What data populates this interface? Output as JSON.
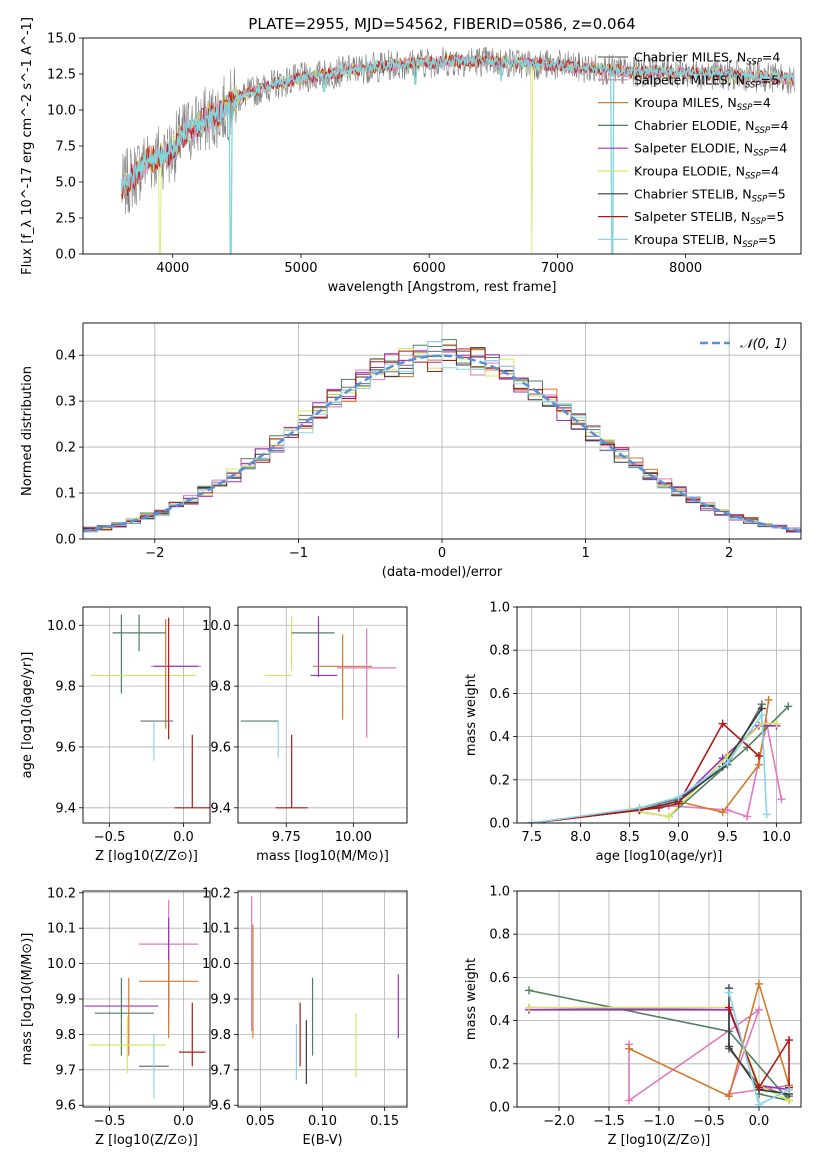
{
  "figure_title": "PLATE=2955, MJD=54562, FIBERID=0586, z=0.064",
  "legend_entries": [
    {
      "label": "Chabrier MILES, N",
      "sub": "SSP",
      "tail": "=4",
      "color": "#6e6e6e"
    },
    {
      "label": "Salpeter MILES, N",
      "sub": "SSP",
      "tail": "=5",
      "color": "#e377c2"
    },
    {
      "label": "Kroupa MILES, N",
      "sub": "SSP",
      "tail": "=4",
      "color": "#d2792a"
    },
    {
      "label": "Chabrier ELODIE, N",
      "sub": "SSP",
      "tail": "=4",
      "color": "#4f8060"
    },
    {
      "label": "Salpeter ELODIE, N",
      "sub": "SSP",
      "tail": "=4",
      "color": "#9b30c4"
    },
    {
      "label": "Kroupa ELODIE, N",
      "sub": "SSP",
      "tail": "=4",
      "color": "#d8e560"
    },
    {
      "label": "Chabrier STELIB, N",
      "sub": "SSP",
      "tail": "=5",
      "color": "#3a3a3a"
    },
    {
      "label": "Salpeter STELIB, N",
      "sub": "SSP",
      "tail": "=5",
      "color": "#b01818"
    },
    {
      "label": "Kroupa STELIB, N",
      "sub": "SSP",
      "tail": "=5",
      "color": "#8ad4e8"
    }
  ],
  "normal_legend": "𝒩(0, 1)",
  "chart_data": [
    {
      "id": "spectrum",
      "type": "line",
      "xlabel": "wavelength [Angstrom, rest frame]",
      "ylabel": "Flux [f_λ 10^-17 erg cm^-2 s^-1 A^-1]",
      "xlim": [
        3300,
        8900
      ],
      "ylim": [
        0,
        15
      ],
      "xticks": [
        4000,
        5000,
        6000,
        7000,
        8000
      ],
      "yticks": [
        0.0,
        2.5,
        5.0,
        7.5,
        10.0,
        12.5,
        15.0
      ],
      "continuum": {
        "x": [
          3600,
          3700,
          3800,
          3900,
          4000,
          4100,
          4200,
          4300,
          4400,
          4500,
          4600,
          4700,
          4800,
          4900,
          5000,
          5200,
          5400,
          5600,
          5800,
          6000,
          6200,
          6400,
          6600,
          6800,
          7000,
          7200,
          7400,
          7600,
          7800,
          8000,
          8200,
          8400,
          8600,
          8800
        ],
        "y": [
          4.5,
          5.5,
          6.5,
          6.8,
          7.2,
          8.5,
          9.0,
          9.5,
          10.0,
          10.8,
          11.2,
          11.5,
          11.8,
          12.0,
          12.2,
          12.5,
          12.8,
          13.0,
          13.2,
          13.3,
          13.4,
          13.4,
          13.3,
          13.2,
          13.1,
          12.9,
          12.8,
          12.6,
          12.7,
          12.6,
          12.5,
          12.4,
          12.3,
          12.2
        ]
      },
      "absorption_dips": [
        {
          "x": 4450,
          "y": 0
        },
        {
          "x": 5180,
          "y": 11.3
        },
        {
          "x": 5890,
          "y": 11.8
        },
        {
          "x": 6560,
          "y": 12.0
        },
        {
          "x": 7430,
          "y": 0
        }
      ],
      "grid": false
    },
    {
      "id": "residual_hist",
      "type": "histogram",
      "xlabel": "(data-model)/error",
      "ylabel": "Normed distribution",
      "xlim": [
        -2.5,
        2.5
      ],
      "ylim": [
        0,
        0.47
      ],
      "xticks": [
        -2,
        -1,
        0,
        1,
        2
      ],
      "yticks": [
        0.0,
        0.1,
        0.2,
        0.3,
        0.4
      ],
      "bin_width": 0.1,
      "grid": true,
      "legend": "top-right",
      "reference": "normal(0,1)"
    },
    {
      "id": "age_vs_Z",
      "type": "scatter",
      "xlabel": "Z [log10(Z/Z⊙)]",
      "ylabel": "age  [log10(age/yr)]",
      "xlim": [
        -0.68,
        0.18
      ],
      "ylim": [
        9.35,
        10.06
      ],
      "xticks": [
        -0.5,
        0.0
      ],
      "yticks": [
        9.4,
        9.6,
        9.8,
        10.0
      ],
      "grid": true,
      "points": [
        {
          "x": -0.3,
          "y": 9.975,
          "xerr": 0.18,
          "yerr": 0.06,
          "c": 3
        },
        {
          "x": -0.42,
          "y": 9.905,
          "xerr": 0.0,
          "yerr": 0.13,
          "c": 3
        },
        {
          "x": -0.27,
          "y": 9.835,
          "xerr": 0.36,
          "yerr": 0.0,
          "c": 5
        },
        {
          "x": -0.05,
          "y": 9.865,
          "xerr": 0.17,
          "yerr": 0.0,
          "c": 1
        },
        {
          "x": -0.05,
          "y": 9.865,
          "xerr": 0.15,
          "yerr": 0.0,
          "c": 4
        },
        {
          "x": -0.1,
          "y": 9.825,
          "xerr": 0.0,
          "yerr": 0.2,
          "c": 7
        },
        {
          "x": -0.12,
          "y": 9.84,
          "xerr": 0.0,
          "yerr": 0.18,
          "c": 2
        },
        {
          "x": -0.18,
          "y": 9.685,
          "xerr": 0.11,
          "yerr": 0.0,
          "c": 0
        },
        {
          "x": -0.2,
          "y": 9.62,
          "xerr": 0.0,
          "yerr": 0.065,
          "c": 8
        },
        {
          "x": 0.06,
          "y": 9.4,
          "xerr": 0.12,
          "yerr": 0.0,
          "c": 7
        },
        {
          "x": 0.06,
          "y": 9.52,
          "xerr": 0.0,
          "yerr": 0.12,
          "c": 7
        }
      ]
    },
    {
      "id": "age_vs_mass",
      "type": "scatter",
      "xlabel": "mass [log10(M/M⊙)]",
      "ylabel": "",
      "xlim": [
        9.57,
        10.2
      ],
      "ylim": [
        9.35,
        10.06
      ],
      "xticks": [
        9.75,
        10.0
      ],
      "yticks": [
        9.4,
        9.6,
        9.8,
        10.0
      ],
      "grid": true,
      "points": [
        {
          "x": 9.65,
          "y": 9.685,
          "xerr": 0.07,
          "yerr": 0.0,
          "c": 3
        },
        {
          "x": 9.72,
          "y": 9.625,
          "xerr": 0.0,
          "yerr": 0.06,
          "c": 8
        },
        {
          "x": 9.77,
          "y": 9.94,
          "xerr": 0.0,
          "yerr": 0.09,
          "c": 5
        },
        {
          "x": 9.72,
          "y": 9.835,
          "xerr": 0.05,
          "yerr": 0.0,
          "c": 5
        },
        {
          "x": 9.85,
          "y": 9.975,
          "xerr": 0.08,
          "yerr": 0.0,
          "c": 3
        },
        {
          "x": 9.87,
          "y": 9.93,
          "xerr": 0.0,
          "yerr": 0.1,
          "c": 4
        },
        {
          "x": 9.89,
          "y": 9.835,
          "xerr": 0.05,
          "yerr": 0.0,
          "c": 4
        },
        {
          "x": 9.96,
          "y": 9.865,
          "xerr": 0.11,
          "yerr": 0.0,
          "c": 2
        },
        {
          "x": 9.96,
          "y": 9.83,
          "xerr": 0.0,
          "yerr": 0.14,
          "c": 2
        },
        {
          "x": 10.05,
          "y": 9.86,
          "xerr": 0.11,
          "yerr": 0.0,
          "c": 1
        },
        {
          "x": 10.05,
          "y": 9.81,
          "xerr": 0.0,
          "yerr": 0.18,
          "c": 1
        },
        {
          "x": 9.77,
          "y": 9.52,
          "xerr": 0.0,
          "yerr": 0.12,
          "c": 7
        },
        {
          "x": 9.77,
          "y": 9.4,
          "xerr": 0.06,
          "yerr": 0.0,
          "c": 7
        }
      ]
    },
    {
      "id": "massweight_vs_age",
      "type": "line",
      "xlabel": "age  [log10(age/yr)]",
      "ylabel": "mass weight",
      "xlim": [
        7.35,
        10.25
      ],
      "ylim": [
        0,
        1.0
      ],
      "xticks": [
        7.5,
        8.0,
        8.5,
        9.0,
        9.5,
        10.0
      ],
      "yticks": [
        0.0,
        0.2,
        0.4,
        0.6,
        0.8,
        1.0
      ],
      "grid": true,
      "series": [
        {
          "c": 0,
          "x": [
            7.5,
            8.5,
            9.0,
            9.5,
            9.85
          ],
          "y": [
            0.0,
            0.06,
            0.11,
            0.27,
            0.55
          ]
        },
        {
          "c": 1,
          "x": [
            7.5,
            8.6,
            8.9,
            9.5,
            9.7,
            9.9,
            10.05
          ],
          "y": [
            0.0,
            0.06,
            0.08,
            0.06,
            0.03,
            0.46,
            0.11
          ]
        },
        {
          "c": 2,
          "x": [
            7.5,
            8.6,
            9.0,
            9.45,
            9.82,
            9.92
          ],
          "y": [
            0.0,
            0.06,
            0.1,
            0.05,
            0.27,
            0.57
          ]
        },
        {
          "c": 3,
          "x": [
            7.5,
            8.5,
            8.9,
            9.7,
            10.12
          ],
          "y": [
            0.0,
            0.06,
            0.03,
            0.35,
            0.54
          ]
        },
        {
          "c": 4,
          "x": [
            7.5,
            8.6,
            9.0,
            9.45,
            9.82,
            10.0
          ],
          "y": [
            0.0,
            0.06,
            0.1,
            0.3,
            0.45,
            0.45
          ]
        },
        {
          "c": 5,
          "x": [
            7.5,
            8.5,
            8.9,
            9.5,
            9.85,
            10.0
          ],
          "y": [
            0.0,
            0.06,
            0.03,
            0.31,
            0.46,
            0.46
          ]
        },
        {
          "c": 6,
          "x": [
            7.5,
            8.6,
            9.0,
            9.45,
            9.85
          ],
          "y": [
            0.0,
            0.06,
            0.1,
            0.26,
            0.53
          ]
        },
        {
          "c": 7,
          "x": [
            7.5,
            8.6,
            8.8,
            9.0,
            9.45,
            9.82
          ],
          "y": [
            0.0,
            0.06,
            0.07,
            0.09,
            0.46,
            0.31
          ]
        },
        {
          "c": 8,
          "x": [
            7.5,
            8.6,
            9.0,
            9.5,
            9.85,
            9.9
          ],
          "y": [
            0.0,
            0.07,
            0.12,
            0.28,
            0.5,
            0.04
          ]
        }
      ]
    },
    {
      "id": "mass_vs_Z",
      "type": "scatter",
      "xlabel": "Z [log10(Z/Z⊙)]",
      "ylabel": "mass [log10(M/M⊙)]",
      "xlim": [
        -0.68,
        0.18
      ],
      "ylim": [
        9.595,
        10.205
      ],
      "xticks": [
        -0.5,
        0.0
      ],
      "yticks": [
        9.6,
        9.7,
        9.8,
        9.9,
        10.0,
        10.1,
        10.2
      ],
      "grid": true,
      "points": [
        {
          "x": -0.1,
          "y": 10.055,
          "xerr": 0.2,
          "yerr": 0.0,
          "c": 1
        },
        {
          "x": -0.1,
          "y": 10.0,
          "xerr": 0.0,
          "yerr": 0.18,
          "c": 1
        },
        {
          "x": -0.1,
          "y": 10.0,
          "xerr": 0.0,
          "yerr": 0.13,
          "c": 4
        },
        {
          "x": -0.1,
          "y": 9.95,
          "xerr": 0.2,
          "yerr": 0.0,
          "c": 2
        },
        {
          "x": -0.1,
          "y": 9.9,
          "xerr": 0.0,
          "yerr": 0.11,
          "c": 2
        },
        {
          "x": -0.42,
          "y": 9.88,
          "xerr": 0.25,
          "yerr": 0.0,
          "c": 4
        },
        {
          "x": -0.42,
          "y": 9.85,
          "xerr": 0.0,
          "yerr": 0.11,
          "c": 3
        },
        {
          "x": -0.4,
          "y": 9.86,
          "xerr": 0.2,
          "yerr": 0.0,
          "c": 3
        },
        {
          "x": -0.37,
          "y": 9.85,
          "xerr": 0.0,
          "yerr": 0.11,
          "c": 2
        },
        {
          "x": -0.38,
          "y": 9.77,
          "xerr": 0.26,
          "yerr": 0.0,
          "c": 5
        },
        {
          "x": -0.38,
          "y": 9.77,
          "xerr": 0.0,
          "yerr": 0.08,
          "c": 5
        },
        {
          "x": -0.2,
          "y": 9.71,
          "xerr": 0.1,
          "yerr": 0.0,
          "c": 0
        },
        {
          "x": -0.2,
          "y": 9.71,
          "xerr": 0.0,
          "yerr": 0.09,
          "c": 8
        },
        {
          "x": 0.06,
          "y": 9.75,
          "xerr": 0.09,
          "yerr": 0.0,
          "c": 7
        },
        {
          "x": 0.06,
          "y": 9.8,
          "xerr": 0.0,
          "yerr": 0.09,
          "c": 7
        }
      ]
    },
    {
      "id": "mass_vs_ebv",
      "type": "scatter",
      "xlabel": "E(B-V)",
      "ylabel": "",
      "xlim": [
        0.032,
        0.168
      ],
      "ylim": [
        9.595,
        10.205
      ],
      "xticks": [
        0.05,
        0.1,
        0.15
      ],
      "yticks": [
        9.6,
        9.7,
        9.8,
        9.9,
        10.0,
        10.1,
        10.2
      ],
      "grid": true,
      "points": [
        {
          "x": 0.043,
          "y": 10.0,
          "xerr": 0.0,
          "yerr": 0.19,
          "c": 1
        },
        {
          "x": 0.044,
          "y": 9.95,
          "xerr": 0.0,
          "yerr": 0.16,
          "c": 2
        },
        {
          "x": 0.079,
          "y": 9.75,
          "xerr": 0.0,
          "yerr": 0.08,
          "c": 8
        },
        {
          "x": 0.082,
          "y": 9.8,
          "xerr": 0.0,
          "yerr": 0.09,
          "c": 7
        },
        {
          "x": 0.087,
          "y": 9.75,
          "xerr": 0.0,
          "yerr": 0.09,
          "c": 6
        },
        {
          "x": 0.092,
          "y": 9.85,
          "xerr": 0.0,
          "yerr": 0.11,
          "c": 3
        },
        {
          "x": 0.127,
          "y": 9.77,
          "xerr": 0.0,
          "yerr": 0.09,
          "c": 5
        },
        {
          "x": 0.161,
          "y": 9.88,
          "xerr": 0.0,
          "yerr": 0.09,
          "c": 4
        }
      ]
    },
    {
      "id": "massweight_vs_Z",
      "type": "line",
      "xlabel": "Z [log10(Z/Z⊙)]",
      "ylabel": "mass weight",
      "xlim": [
        -2.42,
        0.42
      ],
      "ylim": [
        0,
        1.0
      ],
      "xticks": [
        -2.0,
        -1.5,
        -1.0,
        -0.5,
        0.0
      ],
      "yticks": [
        0.0,
        0.2,
        0.4,
        0.6,
        0.8,
        1.0
      ],
      "grid": true,
      "series": [
        {
          "c": 0,
          "x": [
            -2.3,
            -0.3,
            -0.3,
            0.0,
            0.3
          ],
          "y": [
            0.46,
            0.45,
            0.27,
            0.1,
            0.05
          ]
        },
        {
          "c": 1,
          "x": [
            -1.3,
            -1.3,
            0.0,
            -0.3,
            0.3
          ],
          "y": [
            0.29,
            0.03,
            0.45,
            0.06,
            0.1
          ]
        },
        {
          "c": 2,
          "x": [
            -1.3,
            -0.3,
            0.0,
            0.3
          ],
          "y": [
            0.27,
            0.05,
            0.57,
            0.1
          ]
        },
        {
          "c": 3,
          "x": [
            -2.3,
            -0.3,
            0.3,
            0.0
          ],
          "y": [
            0.54,
            0.35,
            0.03,
            0.06
          ]
        },
        {
          "c": 4,
          "x": [
            -2.3,
            -0.3,
            0.0,
            0.3
          ],
          "y": [
            0.45,
            0.45,
            0.1,
            0.08
          ]
        },
        {
          "c": 5,
          "x": [
            -2.3,
            -0.3,
            0.0,
            0.3
          ],
          "y": [
            0.46,
            0.46,
            0.1,
            0.03
          ]
        },
        {
          "c": 6,
          "x": [
            -0.3,
            -0.3,
            0.0,
            0.3
          ],
          "y": [
            0.55,
            0.28,
            0.08,
            0.06
          ]
        },
        {
          "c": 7,
          "x": [
            -0.3,
            0.0,
            0.0,
            0.3,
            0.3
          ],
          "y": [
            0.46,
            0.09,
            0.09,
            0.31,
            0.09
          ]
        },
        {
          "c": 8,
          "x": [
            -0.3,
            0.0,
            0.3
          ],
          "y": [
            0.53,
            0.01,
            0.08
          ]
        }
      ]
    }
  ]
}
